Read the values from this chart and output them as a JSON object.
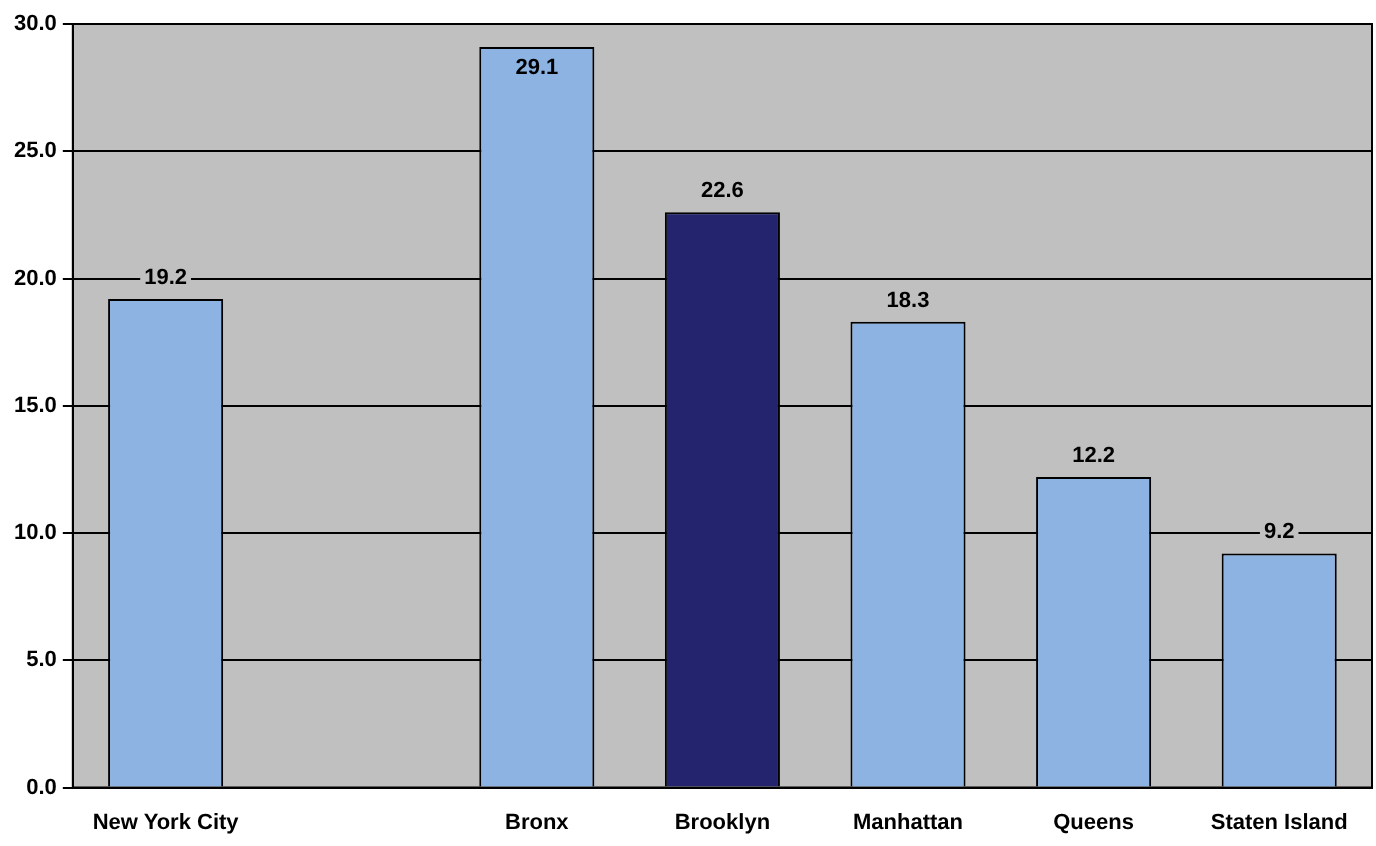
{
  "chart_data": {
    "type": "bar",
    "categories": [
      "New York City",
      null,
      "Bronx",
      "Brooklyn",
      "Manhattan",
      "Queens",
      "Staten Island"
    ],
    "values": [
      19.2,
      null,
      29.1,
      22.6,
      18.3,
      12.2,
      9.2
    ],
    "colors": [
      "#8db3e2",
      "#8db3e2",
      "#8db3e2",
      "#23236e",
      "#8db3e2",
      "#8db3e2",
      "#8db3e2"
    ],
    "ylim": [
      0,
      30
    ],
    "yticks": [
      {
        "value": 0,
        "label": "0.0"
      },
      {
        "value": 5,
        "label": "5.0"
      },
      {
        "value": 10,
        "label": "10.0"
      },
      {
        "value": 15,
        "label": "15.0"
      },
      {
        "value": 20,
        "label": "20.0"
      },
      {
        "value": 25,
        "label": "25.0"
      },
      {
        "value": 30,
        "label": "30.0"
      }
    ],
    "grid": "y",
    "legend": false,
    "data_labels": true
  }
}
